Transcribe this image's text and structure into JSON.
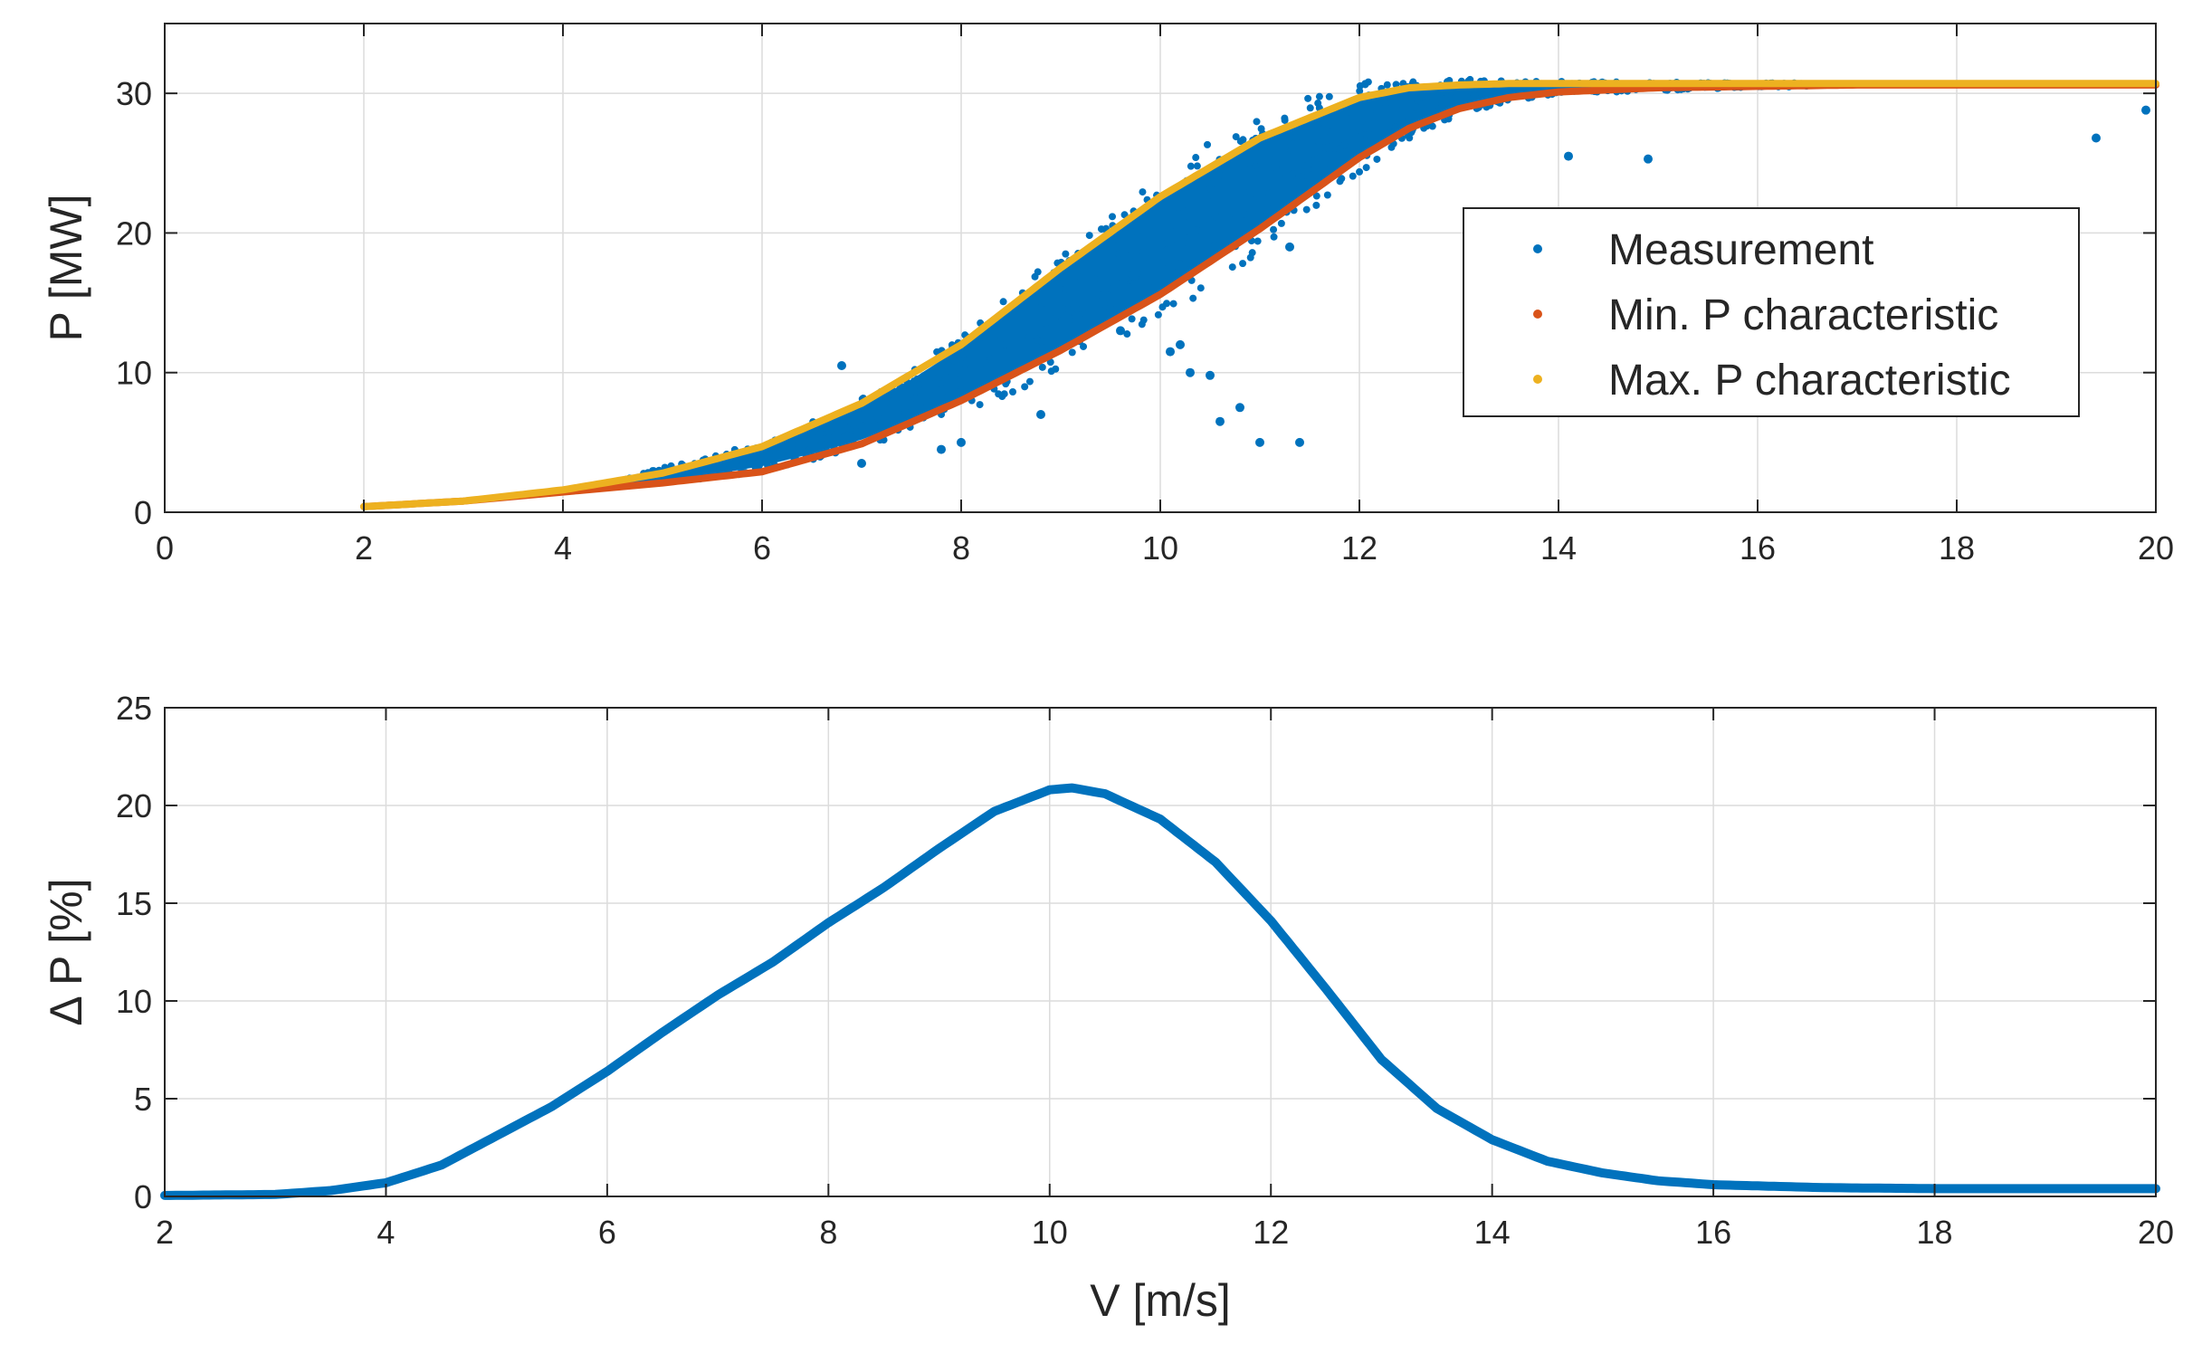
{
  "chart_data": [
    {
      "type": "scatter",
      "title": "",
      "xlabel": "",
      "ylabel": "P [MW]",
      "xlim": [
        0,
        20
      ],
      "ylim": [
        0,
        35
      ],
      "xticks": [
        0,
        2,
        4,
        6,
        8,
        10,
        12,
        14,
        16,
        18,
        20
      ],
      "yticks": [
        0,
        10,
        20,
        30
      ],
      "grid": true,
      "legend": {
        "placement": "right",
        "entries": [
          "Measurement",
          "Min. P characteristic",
          "Max. P characteristic"
        ]
      },
      "series": [
        {
          "name": "Measurement",
          "color": "#0072BD",
          "description_type": "band",
          "x": [
            4.5,
            5.0,
            5.5,
            6.0,
            6.5,
            7.0,
            7.5,
            8.0,
            8.5,
            9.0,
            9.5,
            10.0,
            10.5,
            11.0,
            11.5,
            12.0,
            12.5,
            13.0,
            13.5,
            14.0,
            15.0,
            16.0,
            18.0,
            20.0
          ],
          "lower": [
            1.9,
            2.3,
            2.7,
            3.3,
            4.2,
            5.2,
            6.6,
            8.1,
            9.7,
            11.5,
            13.5,
            15.6,
            17.8,
            20.3,
            22.9,
            25.4,
            27.5,
            28.9,
            29.7,
            30.1,
            30.3,
            30.5,
            30.6,
            30.6
          ],
          "upper": [
            2.4,
            3.0,
            3.8,
            4.7,
            6.0,
            7.6,
            9.5,
            11.8,
            14.5,
            17.3,
            20.0,
            22.5,
            24.8,
            26.8,
            28.5,
            29.7,
            30.4,
            30.6,
            30.7,
            30.7,
            30.7,
            30.7,
            30.7,
            30.7
          ],
          "outliers_x": [
            6.8,
            7.0,
            7.8,
            8.0,
            8.8,
            9.6,
            10.1,
            10.2,
            10.3,
            10.5,
            10.6,
            10.8,
            11.0,
            11.4,
            11.3,
            14.1,
            14.9,
            19.4,
            19.9
          ],
          "outliers_y": [
            10.5,
            3.5,
            4.5,
            5.0,
            7.0,
            13.0,
            11.5,
            12.0,
            10.0,
            9.8,
            6.5,
            7.5,
            5.0,
            5.0,
            19.0,
            25.5,
            25.3,
            26.8,
            28.8
          ]
        },
        {
          "name": "Min. P characteristic",
          "color": "#D95319",
          "x": [
            2,
            3,
            4,
            5,
            6,
            7,
            8,
            9,
            10,
            11,
            12,
            12.5,
            13,
            13.5,
            14,
            15,
            16,
            17,
            18,
            19,
            20
          ],
          "y": [
            0.4,
            0.8,
            1.45,
            2.1,
            2.9,
            4.9,
            8.0,
            11.6,
            15.6,
            20.3,
            25.4,
            27.5,
            28.9,
            29.7,
            30.1,
            30.4,
            30.5,
            30.6,
            30.6,
            30.6,
            30.6
          ]
        },
        {
          "name": "Max. P characteristic",
          "color": "#EDB120",
          "x": [
            2,
            3,
            4,
            5,
            6,
            7,
            8,
            9,
            10,
            11,
            12,
            12.5,
            13,
            13.5,
            14,
            15,
            16,
            17,
            18,
            19,
            20
          ],
          "y": [
            0.4,
            0.8,
            1.6,
            2.8,
            4.7,
            7.8,
            12.0,
            17.5,
            22.6,
            26.8,
            29.7,
            30.4,
            30.6,
            30.7,
            30.7,
            30.7,
            30.7,
            30.7,
            30.7,
            30.7,
            30.7
          ]
        }
      ]
    },
    {
      "type": "line",
      "title": "",
      "xlabel": "V [m/s]",
      "ylabel": "Δ P [%]",
      "xlim": [
        2,
        20
      ],
      "ylim": [
        0,
        25
      ],
      "xticks": [
        2,
        4,
        6,
        8,
        10,
        12,
        14,
        16,
        18,
        20
      ],
      "yticks": [
        0,
        5,
        10,
        15,
        20,
        25
      ],
      "grid": true,
      "series": [
        {
          "color": "#0072BD",
          "x": [
            2,
            3,
            3.5,
            4,
            4.5,
            5,
            5.5,
            6,
            6.5,
            7,
            7.5,
            8,
            8.5,
            9,
            9.5,
            10,
            10.2,
            10.5,
            11,
            11.5,
            12,
            12.5,
            13,
            13.5,
            14,
            14.5,
            15,
            15.5,
            16,
            17,
            18,
            19,
            20
          ],
          "y": [
            0.05,
            0.1,
            0.3,
            0.7,
            1.6,
            3.1,
            4.6,
            6.4,
            8.4,
            10.3,
            12.0,
            14.0,
            15.8,
            17.8,
            19.7,
            20.8,
            20.9,
            20.6,
            19.3,
            17.1,
            14.1,
            10.6,
            7.0,
            4.5,
            2.9,
            1.8,
            1.2,
            0.8,
            0.6,
            0.45,
            0.4,
            0.4,
            0.4
          ]
        }
      ]
    }
  ]
}
